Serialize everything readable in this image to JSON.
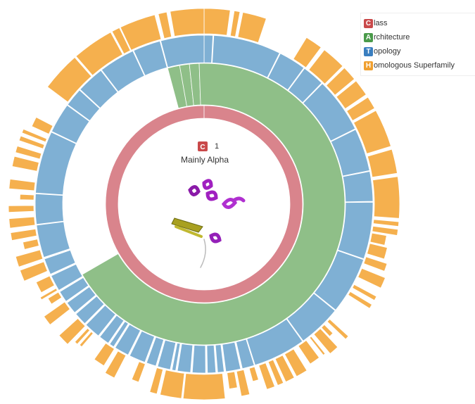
{
  "legend": {
    "items": [
      {
        "letter": "C",
        "label": "lass"
      },
      {
        "letter": "A",
        "label": "rchitecture"
      },
      {
        "letter": "T",
        "label": "opology"
      },
      {
        "letter": "H",
        "label": "omologous Superfamily"
      }
    ]
  },
  "center": {
    "badge": "C",
    "code": "1",
    "name": "Mainly Alpha"
  }
}
